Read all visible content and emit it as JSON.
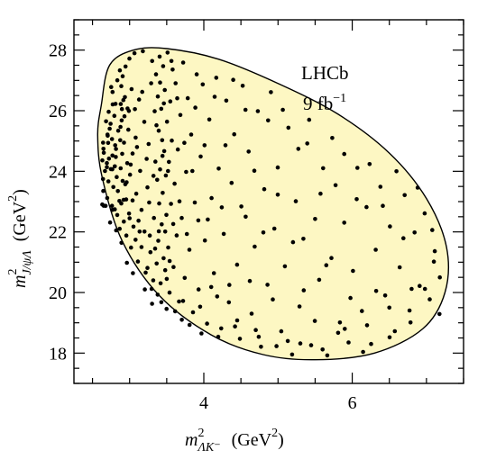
{
  "chart_data": {
    "type": "scatter",
    "title": "",
    "xlabel": {
      "base": "m",
      "sup": "2",
      "sub": "ΛK⁻",
      "unit_open": "(GeV",
      "unit_sup": "2",
      "unit_close": ")"
    },
    "ylabel": {
      "base": "m",
      "sup": "2",
      "sub": "J/ψΛ",
      "unit_open": "(GeV",
      "unit_sup": "2",
      "unit_close": ")"
    },
    "xlim": [
      2.25,
      7.5
    ],
    "ylim": [
      17.0,
      29.0
    ],
    "xticks": [
      4,
      6
    ],
    "xtick_labels": [
      "4",
      "6"
    ],
    "yticks": [
      18,
      20,
      22,
      24,
      26,
      28
    ],
    "ytick_labels": [
      "18",
      "20",
      "22",
      "24",
      "26",
      "28"
    ],
    "grid": false,
    "annotations": [
      {
        "text": "LHCb"
      },
      {
        "text_main": "9 fb",
        "text_sup": "−1"
      }
    ],
    "boundary": {
      "description": "Dalitz kinematic boundary, filled region",
      "fill": "#fdf7c3",
      "stroke": "#000000",
      "points": [
        [
          2.62,
          26.2
        ],
        [
          2.73,
          27.5
        ],
        [
          3.05,
          28.0
        ],
        [
          3.5,
          28.05
        ],
        [
          4.2,
          27.7
        ],
        [
          5.0,
          26.9
        ],
        [
          5.8,
          25.9
        ],
        [
          6.5,
          24.6
        ],
        [
          7.0,
          23.1
        ],
        [
          7.27,
          21.5
        ],
        [
          7.25,
          20.0
        ],
        [
          6.95,
          18.8
        ],
        [
          6.3,
          18.0
        ],
        [
          5.5,
          17.78
        ],
        [
          4.8,
          17.95
        ],
        [
          4.1,
          18.6
        ],
        [
          3.4,
          19.9
        ],
        [
          2.9,
          21.7
        ],
        [
          2.63,
          23.8
        ],
        [
          2.57,
          25.2
        ]
      ]
    },
    "marker_color": "#000000",
    "points": [
      [
        2.632,
        22.905
      ],
      [
        2.676,
        22.861
      ],
      [
        2.633,
        24.359
      ],
      [
        2.714,
        23.669
      ],
      [
        2.643,
        24.945
      ],
      [
        2.641,
        23.747
      ],
      [
        2.648,
        24.743
      ],
      [
        2.651,
        22.862
      ],
      [
        2.693,
        24.271
      ],
      [
        2.693,
        24.134
      ],
      [
        2.702,
        25.213
      ],
      [
        2.652,
        24.612
      ],
      [
        2.705,
        25.174
      ],
      [
        2.711,
        24.938
      ],
      [
        2.744,
        25.569
      ],
      [
        2.766,
        22.728
      ],
      [
        2.766,
        24.066
      ],
      [
        2.805,
        24.858
      ],
      [
        2.773,
        26.208
      ],
      [
        2.718,
        25.963
      ],
      [
        2.731,
        25.405
      ],
      [
        2.769,
        24.521
      ],
      [
        2.763,
        25.063
      ],
      [
        2.747,
        24.071
      ],
      [
        2.8,
        24.163
      ],
      [
        2.81,
        26.225
      ],
      [
        2.77,
        26.617
      ],
      [
        2.763,
        22.86
      ],
      [
        2.8,
        22.745
      ],
      [
        2.814,
        24.474
      ],
      [
        2.816,
        24.738
      ],
      [
        2.826,
        23.812
      ],
      [
        2.834,
        27.003
      ],
      [
        2.842,
        23.347
      ],
      [
        2.833,
        22.557
      ],
      [
        2.88,
        24.099
      ],
      [
        2.881,
        26.219
      ],
      [
        2.888,
        26.81
      ],
      [
        2.866,
        22.102
      ],
      [
        2.877,
        25.466
      ],
      [
        2.873,
        25.026
      ],
      [
        2.869,
        27.33
      ],
      [
        2.888,
        22.938
      ],
      [
        2.893,
        25.678
      ],
      [
        2.897,
        26.054
      ],
      [
        2.9,
        24.577
      ],
      [
        2.906,
        23.683
      ],
      [
        2.906,
        27.138
      ],
      [
        2.922,
        22.34
      ],
      [
        2.925,
        24.946
      ],
      [
        2.93,
        25.816
      ],
      [
        2.937,
        26.449
      ],
      [
        2.945,
        27.458
      ],
      [
        2.954,
        23.07
      ],
      [
        2.956,
        21.879
      ],
      [
        2.968,
        24.269
      ],
      [
        2.972,
        26.073
      ],
      [
        2.983,
        25.374
      ],
      [
        2.993,
        22.604
      ],
      [
        2.998,
        27.72
      ],
      [
        3.006,
        23.889
      ],
      [
        3.019,
        21.482
      ],
      [
        3.027,
        26.713
      ],
      [
        3.04,
        24.585
      ],
      [
        3.052,
        22.173
      ],
      [
        3.065,
        27.897
      ],
      [
        3.081,
        25.112
      ],
      [
        3.09,
        23.26
      ],
      [
        3.112,
        21.022
      ],
      [
        3.128,
        26.367
      ],
      [
        3.142,
        24.012
      ],
      [
        3.16,
        22.728
      ],
      [
        3.178,
        27.962
      ],
      [
        3.198,
        25.633
      ],
      [
        3.216,
        20.656
      ],
      [
        3.24,
        23.47
      ],
      [
        3.256,
        24.901
      ],
      [
        3.272,
        21.879
      ],
      [
        3.29,
        26.905
      ],
      [
        3.304,
        27.64
      ],
      [
        3.318,
        20.401
      ],
      [
        3.328,
        22.46
      ],
      [
        3.338,
        25.981
      ],
      [
        3.348,
        24.318
      ],
      [
        3.356,
        27.201
      ],
      [
        3.364,
        20.955
      ],
      [
        3.372,
        23.719
      ],
      [
        3.38,
        26.47
      ],
      [
        3.386,
        21.707
      ],
      [
        3.392,
        25.341
      ],
      [
        3.398,
        22.937
      ],
      [
        3.404,
        27.785
      ],
      [
        3.41,
        24.062
      ],
      [
        3.418,
        20.302
      ],
      [
        3.426,
        26.063
      ],
      [
        3.432,
        22.248
      ],
      [
        3.438,
        25.025
      ],
      [
        3.446,
        23.288
      ],
      [
        3.452,
        27.469
      ],
      [
        3.458,
        21.133
      ],
      [
        3.466,
        24.665
      ],
      [
        3.474,
        26.683
      ],
      [
        3.48,
        20.737
      ],
      [
        3.488,
        23.861
      ],
      [
        3.496,
        22.561
      ],
      [
        3.504,
        25.638
      ],
      [
        3.512,
        27.919
      ],
      [
        3.52,
        21.486
      ],
      [
        3.53,
        24.31
      ],
      [
        3.538,
        19.998
      ],
      [
        3.548,
        26.305
      ],
      [
        3.558,
        22.926
      ],
      [
        3.568,
        25.013
      ],
      [
        3.58,
        27.357
      ],
      [
        3.592,
        20.84
      ],
      [
        3.606,
        23.592
      ],
      [
        3.62,
        26.907
      ],
      [
        3.634,
        21.883
      ],
      [
        3.65,
        24.721
      ],
      [
        3.666,
        19.703
      ],
      [
        3.684,
        25.858
      ],
      [
        3.702,
        22.46
      ],
      [
        3.722,
        27.59
      ],
      [
        3.742,
        20.482
      ],
      [
        3.762,
        23.981
      ],
      [
        3.784,
        26.412
      ],
      [
        3.806,
        21.411
      ],
      [
        3.83,
        25.212
      ],
      [
        3.854,
        19.348
      ],
      [
        3.878,
        22.971
      ],
      [
        3.904,
        27.201
      ],
      [
        3.93,
        20.101
      ],
      [
        3.958,
        24.487
      ],
      [
        3.986,
        26.866
      ],
      [
        4.014,
        21.716
      ],
      [
        4.044,
        18.972
      ],
      [
        4.074,
        25.709
      ],
      [
        4.104,
        23.117
      ],
      [
        4.136,
        20.639
      ],
      [
        4.168,
        27.086
      ],
      [
        4.2,
        24.089
      ],
      [
        4.234,
        18.814
      ],
      [
        4.268,
        21.933
      ],
      [
        4.302,
        26.332
      ],
      [
        4.338,
        19.676
      ],
      [
        4.374,
        23.617
      ],
      [
        4.41,
        25.223
      ],
      [
        4.448,
        20.919
      ],
      [
        4.486,
        18.473
      ],
      [
        4.524,
        26.822
      ],
      [
        4.564,
        22.502
      ],
      [
        4.604,
        24.651
      ],
      [
        4.644,
        19.303
      ],
      [
        4.686,
        21.516
      ],
      [
        4.728,
        25.984
      ],
      [
        4.77,
        18.209
      ],
      [
        4.814,
        23.409
      ],
      [
        4.858,
        20.255
      ],
      [
        4.904,
        26.612
      ],
      [
        4.95,
        22.108
      ],
      [
        4.996,
        24.127
      ],
      [
        5.044,
        18.721
      ],
      [
        5.092,
        20.865
      ],
      [
        5.14,
        25.439
      ],
      [
        5.19,
        17.953
      ],
      [
        5.24,
        23.012
      ],
      [
        5.29,
        19.54
      ],
      [
        5.342,
        21.773
      ],
      [
        5.394,
        24.918
      ],
      [
        5.446,
        18.26
      ],
      [
        5.5,
        22.428
      ],
      [
        5.554,
        20.419
      ],
      [
        5.608,
        24.102
      ],
      [
        5.664,
        17.924
      ],
      [
        5.72,
        21.137
      ],
      [
        5.776,
        23.54
      ],
      [
        5.834,
        19.011
      ],
      [
        5.892,
        22.306
      ],
      [
        5.95,
        18.352
      ],
      [
        6.01,
        20.712
      ],
      [
        6.07,
        24.115
      ],
      [
        6.13,
        19.387
      ],
      [
        6.192,
        22.82
      ],
      [
        6.254,
        18.301
      ],
      [
        6.316,
        21.412
      ],
      [
        6.38,
        23.489
      ],
      [
        6.444,
        19.901
      ],
      [
        6.508,
        22.18
      ],
      [
        6.574,
        18.724
      ],
      [
        6.64,
        20.831
      ],
      [
        6.706,
        23.215
      ],
      [
        6.772,
        19.407
      ],
      [
        6.84,
        21.98
      ],
      [
        6.908,
        20.218
      ],
      [
        6.976,
        22.612
      ],
      [
        7.044,
        19.774
      ],
      [
        7.112,
        21.364
      ],
      [
        7.18,
        20.5
      ],
      [
        2.645,
        23.35
      ],
      [
        2.668,
        24.01
      ],
      [
        2.683,
        25.65
      ],
      [
        2.698,
        23.12
      ],
      [
        2.722,
        24.42
      ],
      [
        2.737,
        22.31
      ],
      [
        2.752,
        26.78
      ],
      [
        2.781,
        23.48
      ],
      [
        2.795,
        25.83
      ],
      [
        2.819,
        22.05
      ],
      [
        2.847,
        25.34
      ],
      [
        2.862,
        23.02
      ],
      [
        2.891,
        21.64
      ],
      [
        2.916,
        26.35
      ],
      [
        2.941,
        23.57
      ],
      [
        2.963,
        20.98
      ],
      [
        2.99,
        25.99
      ],
      [
        3.015,
        24.22
      ],
      [
        3.045,
        20.64
      ],
      [
        3.072,
        26.05
      ],
      [
        3.1,
        24.8
      ],
      [
        3.135,
        22.01
      ],
      [
        3.17,
        26.62
      ],
      [
        3.205,
        20.1
      ],
      [
        3.23,
        24.41
      ],
      [
        3.264,
        22.97
      ],
      [
        3.296,
        20.12
      ],
      [
        3.322,
        23.85
      ],
      [
        3.344,
        21.45
      ],
      [
        3.362,
        25.52
      ],
      [
        3.378,
        19.93
      ],
      [
        3.394,
        22.02
      ],
      [
        3.41,
        26.93
      ],
      [
        3.428,
        19.68
      ],
      [
        3.444,
        24.51
      ],
      [
        3.462,
        26.24
      ],
      [
        3.48,
        22.01
      ],
      [
        3.498,
        19.46
      ],
      [
        3.518,
        24.01
      ],
      [
        3.54,
        21.04
      ],
      [
        3.564,
        27.64
      ],
      [
        3.588,
        22.26
      ],
      [
        3.614,
        19.38
      ],
      [
        3.642,
        26.41
      ],
      [
        3.672,
        23.01
      ],
      [
        3.704,
        19.1
      ],
      [
        3.738,
        24.94
      ],
      [
        3.772,
        21.93
      ],
      [
        3.808,
        18.93
      ],
      [
        3.846,
        24.01
      ],
      [
        3.886,
        26.1
      ],
      [
        3.926,
        22.38
      ],
      [
        3.968,
        18.65
      ],
      [
        4.01,
        24.86
      ],
      [
        4.054,
        22.41
      ],
      [
        4.1,
        20.18
      ],
      [
        4.146,
        26.46
      ],
      [
        4.194,
        18.54
      ],
      [
        4.242,
        22.81
      ],
      [
        4.292,
        24.86
      ],
      [
        4.344,
        20.25
      ],
      [
        4.396,
        27.02
      ],
      [
        4.45,
        19.08
      ],
      [
        4.506,
        22.84
      ],
      [
        4.562,
        26.03
      ],
      [
        4.62,
        20.38
      ],
      [
        4.68,
        24.02
      ],
      [
        4.74,
        18.54
      ],
      [
        4.802,
        21.98
      ],
      [
        4.866,
        25.68
      ],
      [
        4.93,
        19.77
      ],
      [
        4.996,
        23.23
      ],
      [
        5.064,
        26.03
      ],
      [
        5.132,
        18.4
      ],
      [
        5.202,
        21.66
      ],
      [
        5.274,
        24.74
      ],
      [
        5.346,
        20.07
      ],
      [
        5.42,
        25.7
      ],
      [
        5.496,
        19.06
      ],
      [
        5.572,
        23.26
      ],
      [
        5.65,
        20.9
      ],
      [
        5.73,
        25.1
      ],
      [
        5.81,
        18.67
      ],
      [
        5.892,
        24.57
      ],
      [
        5.976,
        19.82
      ],
      [
        6.06,
        23.08
      ],
      [
        6.146,
        18.04
      ],
      [
        6.234,
        24.24
      ],
      [
        6.322,
        20.05
      ],
      [
        6.412,
        22.86
      ],
      [
        6.504,
        18.52
      ],
      [
        6.596,
        24.0
      ],
      [
        6.69,
        21.79
      ],
      [
        6.786,
        19.01
      ],
      [
        6.882,
        23.46
      ],
      [
        6.98,
        20.12
      ],
      [
        7.078,
        22.06
      ],
      [
        7.176,
        19.29
      ],
      [
        3.302,
        19.63
      ],
      [
        3.5,
        20.45
      ],
      [
        3.72,
        19.72
      ],
      [
        3.95,
        19.53
      ],
      [
        4.18,
        19.87
      ],
      [
        4.42,
        18.88
      ],
      [
        4.7,
        18.76
      ],
      [
        4.98,
        18.23
      ],
      [
        5.3,
        18.32
      ],
      [
        5.6,
        18.12
      ],
      [
        5.9,
        18.8
      ],
      [
        6.2,
        18.92
      ],
      [
        6.5,
        19.5
      ],
      [
        6.8,
        20.12
      ],
      [
        7.1,
        21.02
      ],
      [
        2.92,
        23.06
      ],
      [
        2.96,
        23.64
      ],
      [
        3.0,
        22.45
      ],
      [
        3.04,
        23.04
      ],
      [
        3.08,
        21.74
      ],
      [
        3.12,
        22.37
      ],
      [
        3.16,
        21.5
      ],
      [
        3.2,
        22.01
      ],
      [
        3.24,
        20.81
      ],
      [
        3.28,
        21.33
      ]
    ]
  }
}
